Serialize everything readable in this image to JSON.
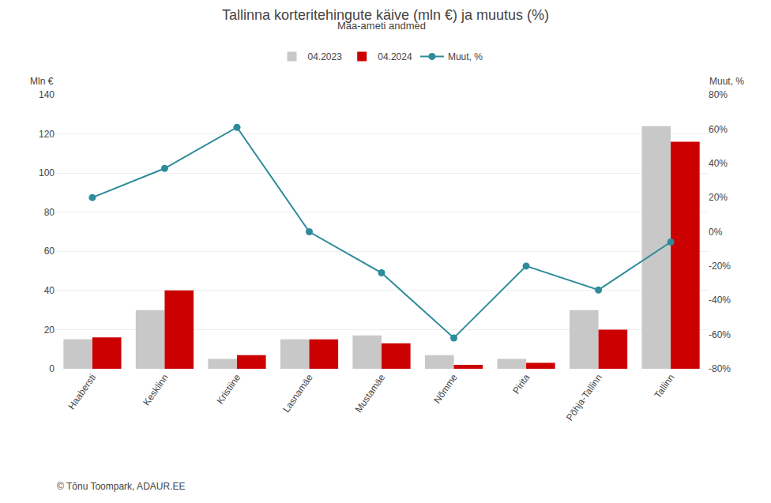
{
  "chart_data": {
    "type": "bar",
    "title": "Tallinna korteritehingute käive (mln €) ja muutus (%)",
    "subtitle": "Maa-ameti andmed",
    "ylabel": "Mln €",
    "y2label": "Muut, %",
    "categories": [
      "Haabersti",
      "Kesklinn",
      "Kristiine",
      "Lasnamäe",
      "Mustamäe",
      "Nõmme",
      "Pirita",
      "Põhja-Tallinn",
      "Tallinn"
    ],
    "series": [
      {
        "name": "04.2023",
        "color": "#c8c8c8",
        "values": [
          15,
          30,
          5,
          15,
          17,
          7,
          5,
          30,
          124
        ]
      },
      {
        "name": "04.2024",
        "color": "#cc0000",
        "values": [
          16,
          40,
          7,
          15,
          13,
          2,
          3,
          20,
          116
        ]
      },
      {
        "name": "Muut, %",
        "color": "#2e8b9a",
        "type": "line",
        "axis": "y2",
        "marker": "circle",
        "values": [
          20,
          37,
          61,
          0,
          -24,
          -62,
          -20,
          -34,
          -6
        ]
      }
    ],
    "ylim": [
      0,
      140
    ],
    "yticks": [
      0,
      20,
      40,
      60,
      80,
      100,
      120,
      140
    ],
    "y2lim": [
      -80,
      80
    ],
    "y2ticks": [
      {
        "value": -80,
        "label": "-80%"
      },
      {
        "value": -60,
        "label": "-60%"
      },
      {
        "value": -40,
        "label": "-40%"
      },
      {
        "value": -20,
        "label": "-20%"
      },
      {
        "value": 0,
        "label": "0%"
      },
      {
        "value": 20,
        "label": "20%"
      },
      {
        "value": 40,
        "label": "40%"
      },
      {
        "value": 60,
        "label": "60%"
      },
      {
        "value": 80,
        "label": "80%"
      }
    ],
    "grid": true,
    "legend": "top",
    "annotations": [
      "© Tõnu Toompark, ADAUR.EE"
    ]
  }
}
